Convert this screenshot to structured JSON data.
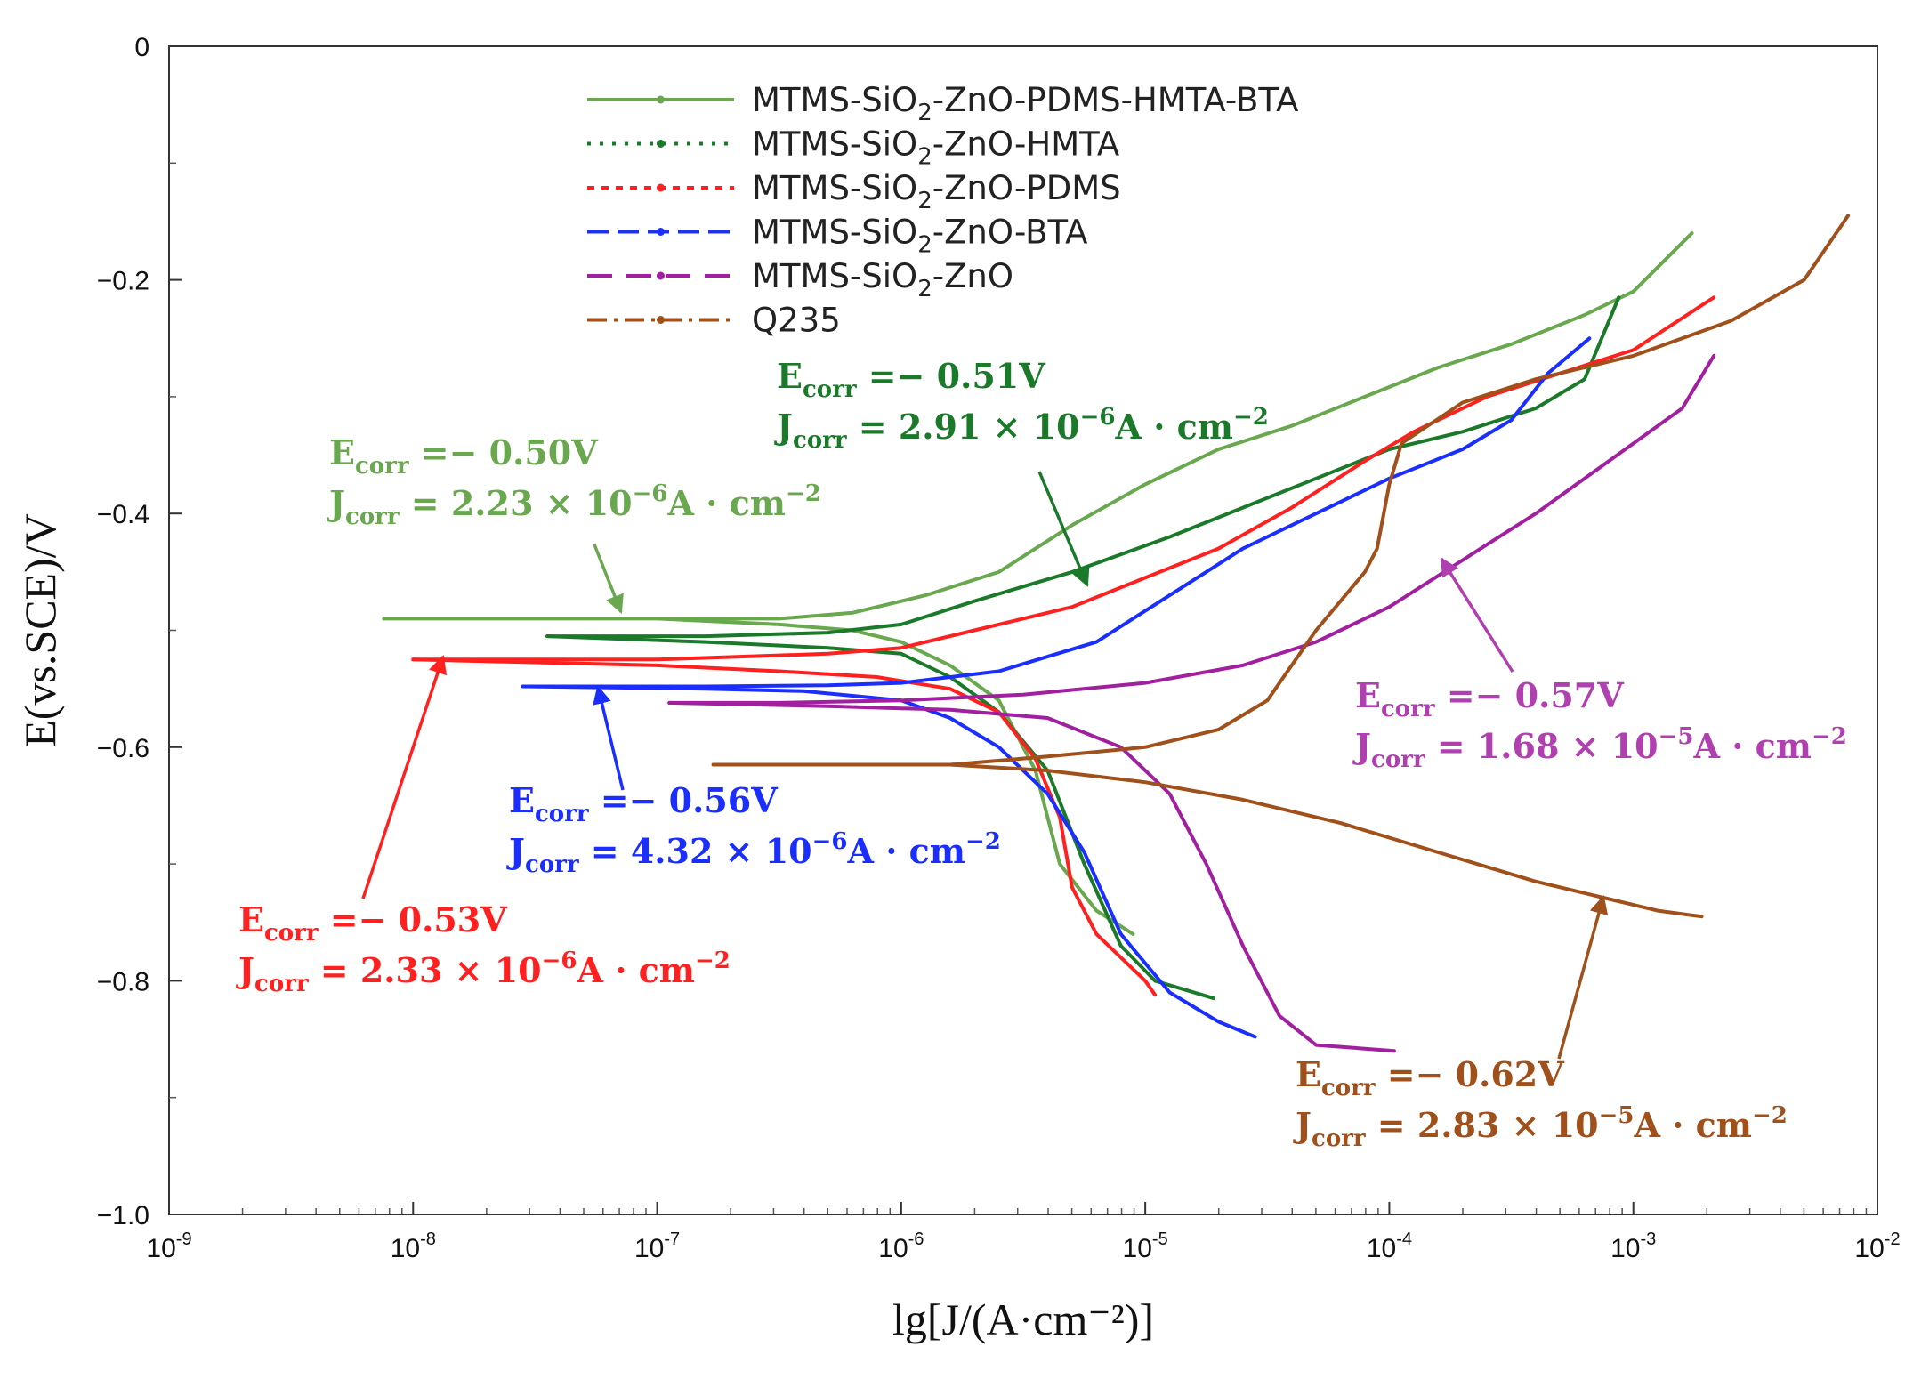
{
  "chart_data": {
    "type": "line",
    "title": "",
    "xlabel": "lg[J/(A·cm⁻²)]",
    "ylabel": "E(vs.SCE)/V",
    "x_scale": "log",
    "xlim_exp": [
      -9,
      -2
    ],
    "ylim": [
      -1.0,
      0
    ],
    "x_ticks": [
      {
        "base": "10",
        "exp": "-9"
      },
      {
        "base": "10",
        "exp": "-8"
      },
      {
        "base": "10",
        "exp": "-7"
      },
      {
        "base": "10",
        "exp": "-6"
      },
      {
        "base": "10",
        "exp": "-5"
      },
      {
        "base": "10",
        "exp": "-4"
      },
      {
        "base": "10",
        "exp": "-3"
      },
      {
        "base": "10",
        "exp": "-2"
      }
    ],
    "y_ticks": [
      "0",
      "−0.2",
      "−0.4",
      "−0.6",
      "−0.8",
      "−1.0"
    ],
    "grid": false,
    "legend_position": "top-center",
    "series": [
      {
        "name": "MTMS-SiO₂-ZnO-PDMS-HMTA-BTA",
        "legend": {
          "pre": "MTMS-SiO",
          "sub": "2",
          "post": "-ZnO-PDMS-HMTA-BTA"
        },
        "color": "#6aa84f",
        "dash": "",
        "marker": true,
        "anodic": [
          [
            -8.12,
            -0.49
          ],
          [
            -7,
            -0.49
          ],
          [
            -6.5,
            -0.49
          ],
          [
            -6.2,
            -0.485
          ],
          [
            -5.9,
            -0.47
          ],
          [
            -5.6,
            -0.45
          ],
          [
            -5.3,
            -0.41
          ],
          [
            -5.0,
            -0.375
          ],
          [
            -4.7,
            -0.345
          ],
          [
            -4.4,
            -0.325
          ],
          [
            -4.1,
            -0.3
          ],
          [
            -3.8,
            -0.275
          ],
          [
            -3.5,
            -0.255
          ],
          [
            -3.2,
            -0.23
          ],
          [
            -3.0,
            -0.21
          ],
          [
            -2.76,
            -0.16
          ]
        ],
        "cathodic": [
          [
            -7,
            -0.49
          ],
          [
            -6.5,
            -0.495
          ],
          [
            -6.2,
            -0.5
          ],
          [
            -6.0,
            -0.51
          ],
          [
            -5.8,
            -0.53
          ],
          [
            -5.6,
            -0.56
          ],
          [
            -5.45,
            -0.62
          ],
          [
            -5.35,
            -0.7
          ],
          [
            -5.2,
            -0.74
          ],
          [
            -5.05,
            -0.76
          ]
        ]
      },
      {
        "name": "MTMS-SiO₂-ZnO-HMTA",
        "legend": {
          "pre": "MTMS-SiO",
          "sub": "2",
          "post": "-ZnO-HMTA"
        },
        "color": "#1a7a2a",
        "dash": "4 10",
        "marker": true,
        "anodic": [
          [
            -7.45,
            -0.505
          ],
          [
            -6.8,
            -0.505
          ],
          [
            -6.3,
            -0.502
          ],
          [
            -6.0,
            -0.495
          ],
          [
            -5.7,
            -0.475
          ],
          [
            -5.3,
            -0.45
          ],
          [
            -4.9,
            -0.42
          ],
          [
            -4.6,
            -0.395
          ],
          [
            -4.3,
            -0.37
          ],
          [
            -4.0,
            -0.345
          ],
          [
            -3.7,
            -0.33
          ],
          [
            -3.4,
            -0.31
          ],
          [
            -3.2,
            -0.285
          ],
          [
            -3.06,
            -0.215
          ]
        ],
        "cathodic": [
          [
            -7.45,
            -0.505
          ],
          [
            -6.8,
            -0.51
          ],
          [
            -6.3,
            -0.515
          ],
          [
            -6.0,
            -0.52
          ],
          [
            -5.8,
            -0.54
          ],
          [
            -5.6,
            -0.57
          ],
          [
            -5.4,
            -0.62
          ],
          [
            -5.25,
            -0.7
          ],
          [
            -5.1,
            -0.77
          ],
          [
            -4.96,
            -0.8
          ],
          [
            -4.72,
            -0.815
          ]
        ]
      },
      {
        "name": "MTMS-SiO₂-ZnO-PDMS",
        "legend": {
          "pre": "MTMS-SiO",
          "sub": "2",
          "post": "-ZnO-PDMS"
        },
        "color": "#ff2020",
        "dash": "8 8",
        "marker": true,
        "anodic": [
          [
            -8.0,
            -0.525
          ],
          [
            -7,
            -0.525
          ],
          [
            -6.3,
            -0.52
          ],
          [
            -6.0,
            -0.515
          ],
          [
            -5.7,
            -0.5
          ],
          [
            -5.3,
            -0.48
          ],
          [
            -5.0,
            -0.455
          ],
          [
            -4.7,
            -0.43
          ],
          [
            -4.4,
            -0.395
          ],
          [
            -4.1,
            -0.355
          ],
          [
            -3.9,
            -0.33
          ],
          [
            -3.6,
            -0.3
          ],
          [
            -3.3,
            -0.28
          ],
          [
            -3.0,
            -0.26
          ],
          [
            -2.67,
            -0.215
          ]
        ],
        "cathodic": [
          [
            -8.0,
            -0.525
          ],
          [
            -7,
            -0.53
          ],
          [
            -6.5,
            -0.535
          ],
          [
            -6.1,
            -0.54
          ],
          [
            -5.8,
            -0.55
          ],
          [
            -5.6,
            -0.57
          ],
          [
            -5.45,
            -0.61
          ],
          [
            -5.35,
            -0.66
          ],
          [
            -5.3,
            -0.72
          ],
          [
            -5.2,
            -0.76
          ],
          [
            -5.0,
            -0.8
          ],
          [
            -4.96,
            -0.812
          ]
        ]
      },
      {
        "name": "MTMS-SiO₂-ZnO-BTA",
        "legend": {
          "pre": "MTMS-SiO",
          "sub": "2",
          "post": "-ZnO-BTA"
        },
        "color": "#1a2fff",
        "dash": "24 10",
        "marker": true,
        "anodic": [
          [
            -7.55,
            -0.548
          ],
          [
            -6.8,
            -0.548
          ],
          [
            -6.3,
            -0.547
          ],
          [
            -6.0,
            -0.545
          ],
          [
            -5.6,
            -0.535
          ],
          [
            -5.2,
            -0.51
          ],
          [
            -4.9,
            -0.47
          ],
          [
            -4.6,
            -0.43
          ],
          [
            -4.3,
            -0.4
          ],
          [
            -4.0,
            -0.37
          ],
          [
            -3.7,
            -0.345
          ],
          [
            -3.5,
            -0.32
          ],
          [
            -3.35,
            -0.28
          ],
          [
            -3.18,
            -0.25
          ]
        ],
        "cathodic": [
          [
            -7.55,
            -0.548
          ],
          [
            -6.8,
            -0.55
          ],
          [
            -6.4,
            -0.552
          ],
          [
            -6.0,
            -0.56
          ],
          [
            -5.8,
            -0.575
          ],
          [
            -5.6,
            -0.6
          ],
          [
            -5.4,
            -0.64
          ],
          [
            -5.25,
            -0.69
          ],
          [
            -5.1,
            -0.76
          ],
          [
            -4.9,
            -0.81
          ],
          [
            -4.7,
            -0.835
          ],
          [
            -4.55,
            -0.848
          ]
        ]
      },
      {
        "name": "MTMS-SiO₂-ZnO",
        "legend": {
          "pre": "MTMS-SiO",
          "sub": "2",
          "post": "-ZnO"
        },
        "color": "#a020a0",
        "dash": "28 16",
        "marker": true,
        "anodic": [
          [
            -6.95,
            -0.562
          ],
          [
            -6.5,
            -0.562
          ],
          [
            -6.0,
            -0.56
          ],
          [
            -5.5,
            -0.555
          ],
          [
            -5.0,
            -0.545
          ],
          [
            -4.6,
            -0.53
          ],
          [
            -4.3,
            -0.51
          ],
          [
            -4.0,
            -0.48
          ],
          [
            -3.7,
            -0.44
          ],
          [
            -3.4,
            -0.4
          ],
          [
            -3.1,
            -0.355
          ],
          [
            -2.8,
            -0.31
          ],
          [
            -2.67,
            -0.265
          ]
        ],
        "cathodic": [
          [
            -6.95,
            -0.562
          ],
          [
            -6.3,
            -0.565
          ],
          [
            -5.8,
            -0.568
          ],
          [
            -5.4,
            -0.575
          ],
          [
            -5.1,
            -0.6
          ],
          [
            -4.9,
            -0.64
          ],
          [
            -4.75,
            -0.7
          ],
          [
            -4.6,
            -0.77
          ],
          [
            -4.45,
            -0.83
          ],
          [
            -4.3,
            -0.855
          ],
          [
            -3.98,
            -0.86
          ]
        ]
      },
      {
        "name": "Q235",
        "legend": {
          "pre": "Q235",
          "sub": "",
          "post": ""
        },
        "color": "#a0501a",
        "dash": "22 8 4 8",
        "marker": true,
        "anodic": [
          [
            -6.77,
            -0.615
          ],
          [
            -6.2,
            -0.615
          ],
          [
            -5.8,
            -0.615
          ],
          [
            -5.4,
            -0.608
          ],
          [
            -5.0,
            -0.6
          ],
          [
            -4.7,
            -0.585
          ],
          [
            -4.5,
            -0.56
          ],
          [
            -4.3,
            -0.5
          ],
          [
            -4.1,
            -0.45
          ],
          [
            -4.05,
            -0.43
          ],
          [
            -4.0,
            -0.375
          ],
          [
            -3.95,
            -0.34
          ],
          [
            -3.7,
            -0.305
          ],
          [
            -3.4,
            -0.285
          ],
          [
            -3.0,
            -0.265
          ],
          [
            -2.6,
            -0.235
          ],
          [
            -2.3,
            -0.2
          ],
          [
            -2.12,
            -0.145
          ]
        ],
        "cathodic": [
          [
            -6.77,
            -0.615
          ],
          [
            -6.2,
            -0.615
          ],
          [
            -5.8,
            -0.615
          ],
          [
            -5.4,
            -0.62
          ],
          [
            -5.0,
            -0.63
          ],
          [
            -4.6,
            -0.645
          ],
          [
            -4.2,
            -0.665
          ],
          [
            -3.8,
            -0.69
          ],
          [
            -3.4,
            -0.715
          ],
          [
            -3.1,
            -0.73
          ],
          [
            -2.9,
            -0.74
          ],
          [
            -2.72,
            -0.745
          ]
        ]
      }
    ],
    "annotations": [
      {
        "color": "#6aa84f",
        "ecorr": "=− 0.50V",
        "jcorr_num": "= 2.23 × 10",
        "jcorr_exp": "−6",
        "jcorr_unit": "A · cm",
        "unit_exp": "−2"
      },
      {
        "color": "#1a7a2a",
        "ecorr": "=− 0.51V",
        "jcorr_num": "= 2.91 × 10",
        "jcorr_exp": "−6",
        "jcorr_unit": "A · cm",
        "unit_exp": "−2"
      },
      {
        "color": "#1a2fff",
        "ecorr": "=− 0.56V",
        "jcorr_num": "= 4.32 × 10",
        "jcorr_exp": "−6",
        "jcorr_unit": "A · cm",
        "unit_exp": "−2"
      },
      {
        "color": "#ff2020",
        "ecorr": "=− 0.53V",
        "jcorr_num": "= 2.33 × 10",
        "jcorr_exp": "−6",
        "jcorr_unit": "A · cm",
        "unit_exp": "−2"
      },
      {
        "color": "#b040b0",
        "ecorr": "=− 0.57V",
        "jcorr_num": "= 1.68 × 10",
        "jcorr_exp": "−5",
        "jcorr_unit": "A · cm",
        "unit_exp": "−2"
      },
      {
        "color": "#a0501a",
        "ecorr": "=− 0.62V",
        "jcorr_num": "= 2.83 × 10",
        "jcorr_exp": "−5",
        "jcorr_unit": "A · cm",
        "unit_exp": "−2"
      }
    ],
    "annotation_labels": {
      "e": "E",
      "j": "J",
      "sub": "corr"
    }
  }
}
